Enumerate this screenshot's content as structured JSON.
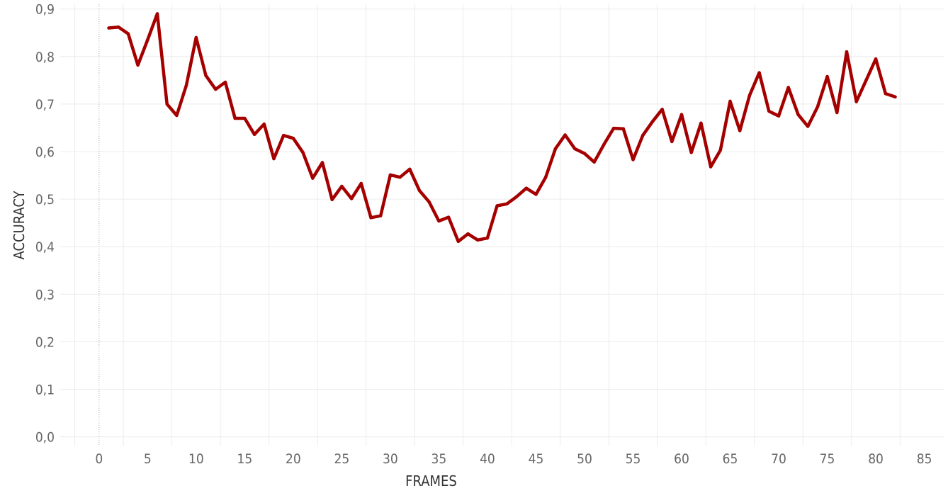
{
  "chart_data": {
    "type": "line",
    "xlabel": "FRAMES",
    "ylabel": "ACCURACY",
    "xlim": [
      -4,
      87
    ],
    "ylim": [
      -0.02,
      0.91
    ],
    "x_ticks": [
      0,
      5,
      10,
      15,
      20,
      25,
      30,
      35,
      40,
      45,
      50,
      55,
      60,
      65,
      70,
      75,
      80,
      85
    ],
    "x_tick_labels": [
      "0",
      "5",
      "10",
      "15",
      "20",
      "25",
      "30",
      "35",
      "40",
      "45",
      "50",
      "55",
      "60",
      "65",
      "70",
      "75",
      "80",
      "85"
    ],
    "y_ticks": [
      0.0,
      0.1,
      0.2,
      0.3,
      0.4,
      0.5,
      0.6,
      0.7,
      0.8,
      0.9
    ],
    "y_tick_labels": [
      "0,0",
      "0,1",
      "0,2",
      "0,3",
      "0,4",
      "0,5",
      "0,6",
      "0,7",
      "0,8",
      "0,9"
    ],
    "grid": true,
    "series": [
      {
        "color": "#a50000",
        "x": [
          1,
          2,
          3,
          4,
          5,
          6,
          7,
          8,
          9,
          10,
          11,
          12,
          13,
          14,
          15,
          16,
          17,
          18,
          19,
          20,
          21,
          22,
          23,
          24,
          25,
          26,
          27,
          28,
          29,
          30,
          31,
          32,
          33,
          34,
          35,
          36,
          37,
          38,
          39,
          40,
          41,
          42,
          43,
          44,
          45,
          46,
          47,
          48,
          49,
          50,
          51,
          52,
          53,
          54,
          55,
          56,
          57,
          58,
          59,
          60,
          61,
          62,
          63,
          64,
          65,
          66,
          67,
          68,
          69,
          70,
          71,
          72,
          73,
          74,
          75,
          76,
          77,
          78,
          79,
          80,
          81,
          82
        ],
        "values": [
          0.86,
          0.862,
          0.848,
          0.782,
          0.835,
          0.89,
          0.7,
          0.676,
          0.74,
          0.84,
          0.76,
          0.731,
          0.746,
          0.67,
          0.67,
          0.636,
          0.658,
          0.585,
          0.634,
          0.628,
          0.598,
          0.544,
          0.577,
          0.499,
          0.527,
          0.501,
          0.533,
          0.461,
          0.465,
          0.551,
          0.546,
          0.563,
          0.518,
          0.494,
          0.454,
          0.462,
          0.411,
          0.427,
          0.414,
          0.418,
          0.486,
          0.49,
          0.505,
          0.523,
          0.51,
          0.546,
          0.606,
          0.635,
          0.606,
          0.596,
          0.578,
          0.615,
          0.649,
          0.648,
          0.583,
          0.634,
          0.663,
          0.689,
          0.621,
          0.678,
          0.598,
          0.66,
          0.568,
          0.603,
          0.706,
          0.644,
          0.718,
          0.766,
          0.685,
          0.675,
          0.735,
          0.678,
          0.653,
          0.694,
          0.758,
          0.682,
          0.81,
          0.705,
          0.75,
          0.795,
          0.722,
          0.715
        ]
      }
    ]
  }
}
